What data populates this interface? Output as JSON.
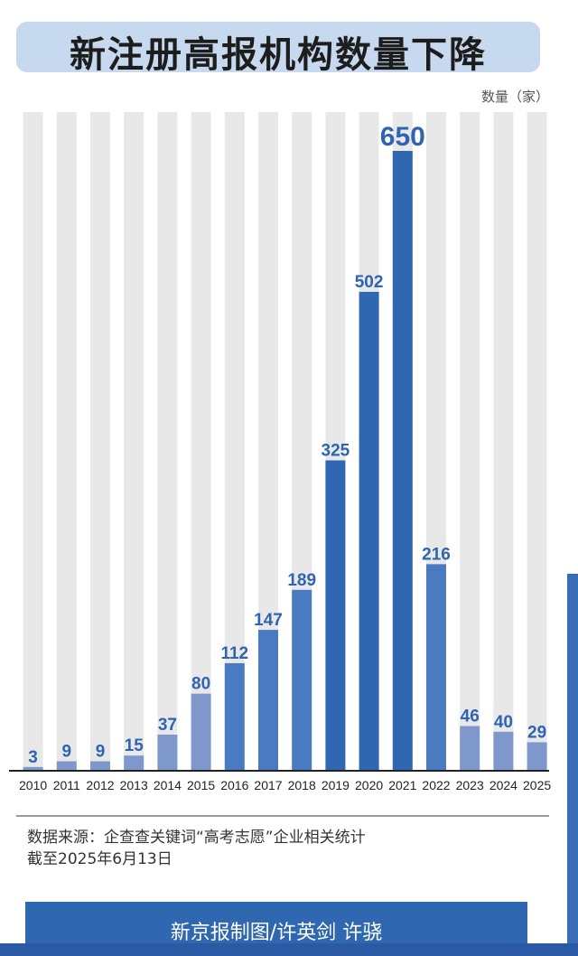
{
  "title": "新注册高报机构数量下降",
  "unit_label": "数量（家）",
  "source_line1": "数据来源：企查查关键词“高考志愿”企业相关统计",
  "source_line2": "截至2025年6月13日",
  "footer": "新京报制图/许英剑  许骁",
  "colors": {
    "light": "#7f98cc",
    "mid": "#4a7bc0",
    "dark": "#2f67b1",
    "track": "#e8e8e8",
    "label": "#2f64b0"
  },
  "chart_data": {
    "type": "bar",
    "categories": [
      "2010",
      "2011",
      "2012",
      "2013",
      "2014",
      "2015",
      "2016",
      "2017",
      "2018",
      "2019",
      "2020",
      "2021",
      "2022",
      "2023",
      "2024",
      "2025"
    ],
    "values": [
      3,
      9,
      9,
      15,
      37,
      80,
      112,
      147,
      189,
      325,
      502,
      650,
      216,
      46,
      40,
      29
    ],
    "ylabel": "数量（家）",
    "ylim": [
      0,
      650
    ],
    "grid": false,
    "legend": "none"
  }
}
